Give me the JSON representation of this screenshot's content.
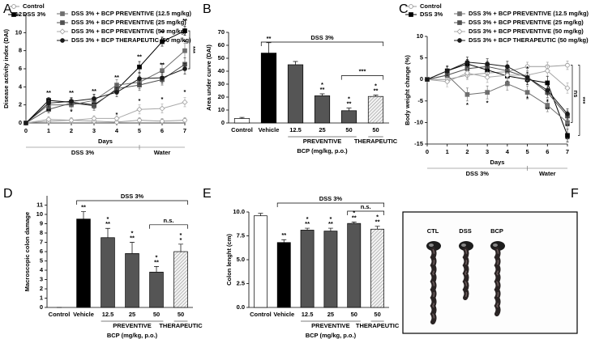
{
  "chart_data": [
    {
      "type": "line",
      "panel": "A",
      "xlabel": "Days",
      "ylabel": "Disease activity index (DAI)",
      "x": [
        0,
        1,
        2,
        3,
        4,
        5,
        6,
        7
      ],
      "xlim": [
        0,
        7
      ],
      "xticks": [
        0,
        1,
        2,
        3,
        4,
        5,
        6,
        7
      ],
      "ylim": [
        0,
        12
      ],
      "yticks": [
        0,
        2,
        4,
        6,
        8,
        10,
        12
      ],
      "series": [
        {
          "name": "Control",
          "color": "#9a9a9a",
          "marker": "circle",
          "filled": false,
          "values": [
            0,
            0.2,
            0.3,
            0.2,
            0.1,
            0.3,
            0.2,
            0.3
          ],
          "errors": [
            0,
            0.2,
            0.3,
            0.2,
            0.2,
            0.3,
            0.3,
            0.3
          ]
        },
        {
          "name": "DSS 3%",
          "color": "#000000",
          "marker": "square",
          "filled": true,
          "values": [
            0,
            2.5,
            2.3,
            2.0,
            3.7,
            6.2,
            9.0,
            10.2
          ],
          "errors": [
            0,
            0.3,
            0.4,
            0.4,
            0.5,
            0.6,
            0.5,
            0.5
          ]
        },
        {
          "name": "DSS 3% + BCP PREVENTIVE (12.5 mg/kg)",
          "color": "#6e6e6e",
          "marker": "square",
          "filled": true,
          "values": [
            0,
            2.0,
            2.0,
            2.5,
            4.2,
            4.5,
            5.8,
            8.0
          ],
          "errors": [
            0,
            0.5,
            0.5,
            0.6,
            0.6,
            0.7,
            0.8,
            0.8
          ]
        },
        {
          "name": "DSS 3% + BCP PREVENTIVE (25 mg/kg)",
          "color": "#505050",
          "marker": "square",
          "filled": true,
          "values": [
            0,
            1.5,
            2.2,
            1.9,
            3.8,
            4.2,
            4.8,
            6.5
          ],
          "errors": [
            0,
            0.4,
            0.4,
            0.5,
            0.5,
            0.6,
            0.6,
            0.7
          ]
        },
        {
          "name": "DSS 3% + BCP PREVENTIVE (50 mg/kg)",
          "color": "#a8a8a8",
          "marker": "diamond",
          "filled": false,
          "values": [
            0,
            0.4,
            0.3,
            0.5,
            0.5,
            1.5,
            1.6,
            2.3
          ],
          "errors": [
            0,
            0.3,
            0.3,
            0.3,
            0.3,
            0.5,
            0.5,
            0.5
          ]
        },
        {
          "name": "DSS 3% + BCP THERAPEUTIC (50 mg/kg)",
          "color": "#1a1a1a",
          "marker": "circle",
          "filled": true,
          "values": [
            0,
            2.2,
            2.4,
            2.7,
            3.4,
            4.9,
            5.0,
            6.0
          ],
          "errors": [
            0,
            0.4,
            0.4,
            0.5,
            0.5,
            0.6,
            0.6,
            0.6
          ]
        }
      ],
      "annotations": [
        {
          "x": 1,
          "y": 3.3,
          "text": "**"
        },
        {
          "x": 2,
          "y": 3.3,
          "text": "**"
        },
        {
          "x": 3,
          "y": 3.5,
          "text": "**"
        },
        {
          "x": 4,
          "y": 5,
          "text": "**"
        },
        {
          "x": 5,
          "y": 7.3,
          "text": "**"
        },
        {
          "x": 6,
          "y": 10,
          "text": "**"
        },
        {
          "x": 7,
          "y": 11.3,
          "text": "**"
        },
        {
          "x": 1,
          "y": 1.3,
          "text": "**"
        },
        {
          "x": 2,
          "y": 1.2,
          "text": "*"
        },
        {
          "x": 4,
          "y": 0.9,
          "text": "*"
        },
        {
          "x": 5,
          "y": 2.4,
          "text": "*"
        },
        {
          "x": 6,
          "y": 2.6,
          "text": "*"
        },
        {
          "x": 7,
          "y": 3.4,
          "text": "*"
        },
        {
          "x": 6,
          "y": 6.4,
          "text": "**"
        },
        {
          "x": 7,
          "y": 8.9,
          "text": "*"
        }
      ],
      "brackets": [
        {
          "label": "***",
          "from": 1,
          "to": 5
        }
      ],
      "phases": [
        {
          "label": "DSS 3%",
          "from": 0,
          "to": 5
        },
        {
          "label": "Water",
          "from": 5,
          "to": 7
        }
      ]
    },
    {
      "type": "bar",
      "panel": "B",
      "ylabel": "Area under curve (DAI)",
      "xlabel": "BCP (mg/kg, p.o.)",
      "categories": [
        "Control",
        "Vehicle",
        "12.5",
        "25",
        "50",
        "50"
      ],
      "values": [
        3.5,
        54,
        45,
        21,
        9.5,
        20.5
      ],
      "errors": [
        0.8,
        8,
        2.5,
        1.5,
        2,
        1
      ],
      "colors": [
        "#ffffff",
        "#000000",
        "#555555",
        "#555555",
        "#555555",
        "#e0e0e0"
      ],
      "hatched": [
        false,
        false,
        false,
        false,
        false,
        true
      ],
      "significance": [
        null,
        [
          "**"
        ],
        null,
        [
          "*",
          "**"
        ],
        [
          "*",
          "**"
        ],
        [
          "*",
          "**"
        ]
      ],
      "ylim": [
        0,
        70
      ],
      "yticks": [
        0,
        10,
        20,
        30,
        40,
        50,
        60,
        70
      ],
      "groups": [
        {
          "label": "PREVENTIVE",
          "from": 2,
          "to": 4
        },
        {
          "label": "THERAPEUTIC",
          "from": 5,
          "to": 5
        }
      ],
      "brackets": [
        {
          "label": "DSS 3%",
          "from": 1,
          "to": 5
        },
        {
          "label": "***",
          "from": 4,
          "to": 5
        }
      ]
    },
    {
      "type": "line",
      "panel": "C",
      "xlabel": "Days",
      "ylabel": "Body weight change (%)",
      "x": [
        0,
        1,
        2,
        3,
        4,
        5,
        6,
        7
      ],
      "xlim": [
        0,
        7
      ],
      "xticks": [
        0,
        1,
        2,
        3,
        4,
        5,
        6,
        7
      ],
      "ylim": [
        -15,
        10
      ],
      "yticks": [
        -15,
        -10,
        -5,
        0,
        5,
        10
      ],
      "series": [
        {
          "name": "Control",
          "color": "#9a9a9a",
          "marker": "circle",
          "filled": false,
          "values": [
            0,
            0,
            1,
            1.5,
            1.8,
            3,
            3,
            3.3
          ],
          "errors": [
            0,
            0.8,
            1,
            1,
            1,
            1,
            1,
            1
          ]
        },
        {
          "name": "DSS 3%",
          "color": "#000000",
          "marker": "square",
          "filled": true,
          "values": [
            0,
            2,
            3.6,
            2.2,
            0.8,
            0,
            -0.8,
            -13
          ],
          "errors": [
            0,
            1,
            1,
            1.2,
            1.2,
            1.2,
            1.5,
            1.5
          ]
        },
        {
          "name": "DSS 3% + BCP PREVENTIVE (12.5 mg/kg)",
          "color": "#6e6e6e",
          "marker": "square",
          "filled": true,
          "values": [
            0,
            1,
            -3.5,
            -3,
            -1,
            -3,
            -6,
            -10
          ],
          "errors": [
            0,
            1,
            1.5,
            1.5,
            1.5,
            1.5,
            1.5,
            1.5
          ]
        },
        {
          "name": "DSS 3% + BCP PREVENTIVE (25 mg/kg)",
          "color": "#505050",
          "marker": "square",
          "filled": true,
          "values": [
            0,
            1,
            2.5,
            3,
            2,
            0.5,
            -3,
            -8.5
          ],
          "errors": [
            0,
            1.2,
            1.2,
            1.2,
            1.2,
            1.2,
            1.2,
            1.2
          ]
        },
        {
          "name": "DSS 3% + BCP PREVENTIVE (50 mg/kg)",
          "color": "#a8a8a8",
          "marker": "diamond",
          "filled": false,
          "values": [
            0,
            -0.5,
            1.5,
            0.5,
            1,
            1,
            2,
            -2
          ],
          "errors": [
            0,
            1.2,
            1.2,
            1.2,
            1.2,
            1.2,
            1.2,
            1.2
          ]
        },
        {
          "name": "DSS 3% + BCP THERAPEUTIC (50 mg/kg)",
          "color": "#1a1a1a",
          "marker": "circle",
          "filled": true,
          "values": [
            0,
            2,
            4,
            3.6,
            3,
            0.5,
            -2.5,
            -8
          ],
          "errors": [
            0,
            1.2,
            1.2,
            1.2,
            1.2,
            1.2,
            1.2,
            1.2
          ]
        }
      ],
      "annotations": [
        {
          "x": 2,
          "y": -6,
          "text": "*"
        },
        {
          "x": 3,
          "y": -5.5,
          "text": "*"
        },
        {
          "x": 5,
          "y": -4.5,
          "text": "*"
        },
        {
          "x": 6,
          "y": -5.2,
          "text": "*"
        },
        {
          "x": 6,
          "y": -7,
          "text": "**"
        },
        {
          "x": 7,
          "y": -11,
          "text": "**"
        },
        {
          "x": 7,
          "y": -14,
          "text": "**"
        },
        {
          "x": 5,
          "y": 2.5,
          "text": "*"
        }
      ],
      "brackets": [
        {
          "label": "ns",
          "from": 0,
          "to": 2
        },
        {
          "label": "***",
          "from": 0,
          "to": 1
        }
      ],
      "phases": [
        {
          "label": "DSS 3%",
          "from": 0,
          "to": 5
        },
        {
          "label": "Water",
          "from": 5,
          "to": 7
        }
      ]
    },
    {
      "type": "bar",
      "panel": "D",
      "ylabel": "Macroscopic colon damage",
      "xlabel": "BCP (mg/kg, p.o.)",
      "categories": [
        "Control",
        "Vehicle",
        "12.5",
        "25",
        "50",
        "50"
      ],
      "values": [
        0,
        9.5,
        7.5,
        5.8,
        3.8,
        6.0
      ],
      "errors": [
        0,
        0.8,
        1,
        1.2,
        0.6,
        0.8
      ],
      "colors": [
        "#ffffff",
        "#000000",
        "#555555",
        "#555555",
        "#555555",
        "#e0e0e0"
      ],
      "hatched": [
        false,
        false,
        false,
        false,
        false,
        true
      ],
      "significance": [
        null,
        [
          "**"
        ],
        [
          "*",
          "**"
        ],
        [
          "*",
          "**"
        ],
        [
          "*",
          "**"
        ],
        [
          "*",
          "*"
        ]
      ],
      "ylim": [
        0,
        12
      ],
      "yticks": [
        0,
        1,
        2,
        3,
        4,
        5,
        6,
        7,
        8,
        9,
        10,
        11
      ],
      "groups": [
        {
          "label": "PREVENTIVE",
          "from": 2,
          "to": 4
        },
        {
          "label": "THERAPEUTIC",
          "from": 5,
          "to": 5
        }
      ],
      "brackets": [
        {
          "label": "DSS 3%",
          "from": 1,
          "to": 5
        },
        {
          "label": "n.s.",
          "from": 4,
          "to": 5
        }
      ]
    },
    {
      "type": "bar",
      "panel": "E",
      "ylabel": "Colon lenght (cm)",
      "xlabel": "BCP (mg/kg, p.o.)",
      "categories": [
        "Control",
        "Vehicle",
        "12.5",
        "25",
        "50",
        "50"
      ],
      "values": [
        9.6,
        6.8,
        8.1,
        8.0,
        8.8,
        8.2
      ],
      "errors": [
        0.25,
        0.3,
        0.2,
        0.3,
        0.15,
        0.3
      ],
      "colors": [
        "#ffffff",
        "#000000",
        "#555555",
        "#555555",
        "#555555",
        "#e0e0e0"
      ],
      "hatched": [
        false,
        false,
        false,
        false,
        false,
        true
      ],
      "significance": [
        null,
        [
          "**"
        ],
        [
          "*",
          "**"
        ],
        [
          "*",
          "**"
        ],
        [
          "*",
          "**"
        ],
        [
          "*",
          "**"
        ]
      ],
      "ylim": [
        0,
        10
      ],
      "yticks": [
        {
          "value": 0,
          "label": "0.0"
        },
        2.5,
        {
          "value": 5,
          "label": "5.0"
        },
        7.5,
        {
          "value": 10,
          "label": "10.0"
        }
      ],
      "groups": [
        {
          "label": "PREVENTIVE",
          "from": 2,
          "to": 4
        },
        {
          "label": "THERAPEUTIC",
          "from": 5,
          "to": 5
        }
      ],
      "brackets": [
        {
          "label": "DSS 3%",
          "from": 1,
          "to": 5
        },
        {
          "label": "n.s.",
          "from": 4,
          "to": 5
        }
      ]
    },
    {
      "type": "photo",
      "panel": "F",
      "labels": [
        "CTL",
        "DSS",
        "BCP"
      ]
    }
  ]
}
